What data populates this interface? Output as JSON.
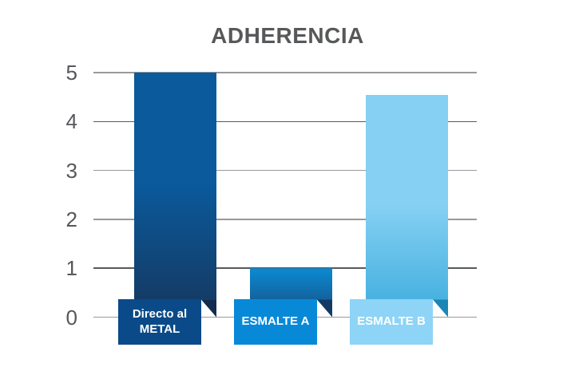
{
  "page": {
    "background": "#ffffff"
  },
  "chart_data": {
    "type": "bar",
    "title": "ADHERENCIA",
    "title_color": "#57585a",
    "categories": [
      "Directo al METAL",
      "ESMALTE A",
      "ESMALTE B"
    ],
    "values": [
      5,
      1,
      4.55
    ],
    "xlabel": "",
    "ylabel": "",
    "ylim": [
      0,
      5
    ],
    "yticks": [
      5,
      4,
      3,
      2,
      1,
      0
    ],
    "ytick_color": "#56575a",
    "grid": true,
    "gridline_color": "#98999c",
    "gridline_color_dark": "#58595b",
    "legend": false,
    "bars": [
      {
        "label_lines": [
          "Directo al",
          "METAL"
        ],
        "value": 5,
        "color_top": "#0a5a9c",
        "color_bottom": "#16375f",
        "gradient_hold_pct": 45,
        "fold_color": "#112c4e",
        "box_color": "#0b4a88",
        "text_color": "#ffffff"
      },
      {
        "label_lines": [
          "ESMALTE A"
        ],
        "value": 1,
        "color_top": "#0b8bd4",
        "color_bottom": "#174e7e",
        "gradient_hold_pct": 0,
        "fold_color": "#123a64",
        "box_color": "#0889d8",
        "text_color": "#ffffff"
      },
      {
        "label_lines": [
          "ESMALTE B"
        ],
        "value": 4.55,
        "color_top": "#85d0f3",
        "color_bottom": "#3dacdd",
        "gradient_hold_pct": 50,
        "fold_color": "#1b86b6",
        "box_color": "#8ed4f6",
        "text_color": "#ffffff"
      }
    ]
  }
}
